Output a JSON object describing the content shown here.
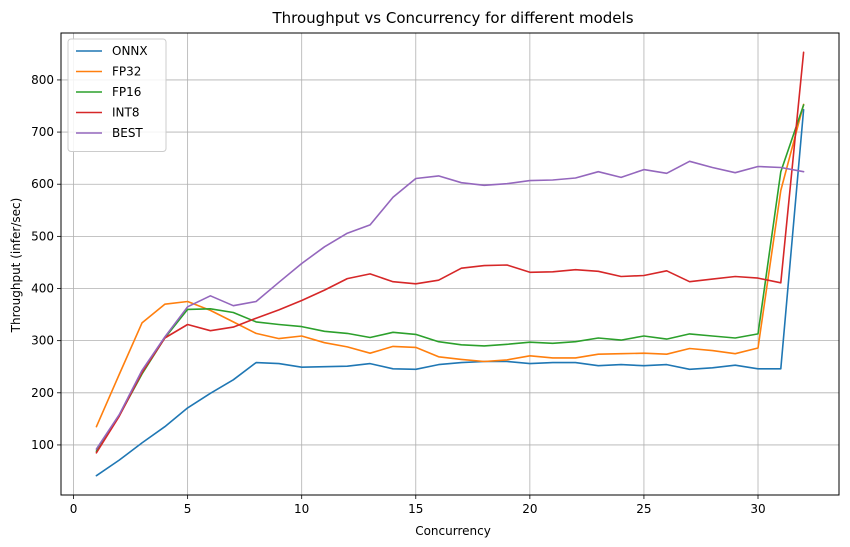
{
  "chart_data": {
    "type": "line",
    "title": "Throughput vs Concurrency for different models",
    "xlabel": "Concurrency",
    "ylabel": "Throughput (infer/sec)",
    "xlim": [
      -0.55,
      33.55
    ],
    "ylim": [
      4,
      890
    ],
    "xticks": [
      0,
      5,
      10,
      15,
      20,
      25,
      30
    ],
    "yticks": [
      100,
      200,
      300,
      400,
      500,
      600,
      700,
      800
    ],
    "grid": true,
    "legend_position": "top-left",
    "x": [
      1,
      2,
      3,
      4,
      5,
      6,
      7,
      8,
      9,
      10,
      11,
      12,
      13,
      14,
      15,
      16,
      17,
      18,
      19,
      20,
      21,
      22,
      23,
      24,
      25,
      26,
      27,
      28,
      29,
      30,
      31,
      32
    ],
    "series": [
      {
        "name": "ONNX",
        "color": "#1f77b4",
        "values": [
          41,
          71,
          104,
          135,
          171,
          199,
          225,
          258,
          256,
          249,
          250,
          251,
          256,
          246,
          245,
          254,
          258,
          260,
          260,
          256,
          258,
          258,
          252,
          254,
          252,
          254,
          245,
          248,
          253,
          246,
          246,
          743
        ]
      },
      {
        "name": "FP32",
        "color": "#ff7f0e",
        "values": [
          135,
          235,
          334,
          370,
          375,
          358,
          336,
          314,
          304,
          309,
          296,
          288,
          276,
          289,
          287,
          269,
          264,
          260,
          263,
          271,
          267,
          267,
          274,
          275,
          276,
          274,
          285,
          281,
          275,
          286,
          588,
          753
        ]
      },
      {
        "name": "FP16",
        "color": "#2ca02c",
        "values": [
          88,
          156,
          236,
          305,
          360,
          361,
          354,
          336,
          331,
          327,
          318,
          314,
          306,
          316,
          312,
          298,
          292,
          290,
          293,
          297,
          295,
          298,
          305,
          301,
          309,
          303,
          313,
          309,
          305,
          313,
          624,
          752
        ]
      },
      {
        "name": "INT8",
        "color": "#d62728",
        "values": [
          85,
          155,
          239,
          305,
          331,
          319,
          326,
          343,
          359,
          377,
          397,
          419,
          428,
          413,
          409,
          416,
          439,
          444,
          445,
          431,
          432,
          436,
          433,
          423,
          425,
          434,
          413,
          418,
          423,
          420,
          411,
          853
        ]
      },
      {
        "name": "BEST",
        "color": "#9467bd",
        "values": [
          92,
          158,
          243,
          307,
          365,
          386,
          367,
          375,
          412,
          448,
          480,
          506,
          522,
          575,
          611,
          616,
          603,
          598,
          601,
          607,
          608,
          612,
          624,
          613,
          628,
          621,
          644,
          632,
          622,
          634,
          632,
          624
        ]
      }
    ]
  }
}
